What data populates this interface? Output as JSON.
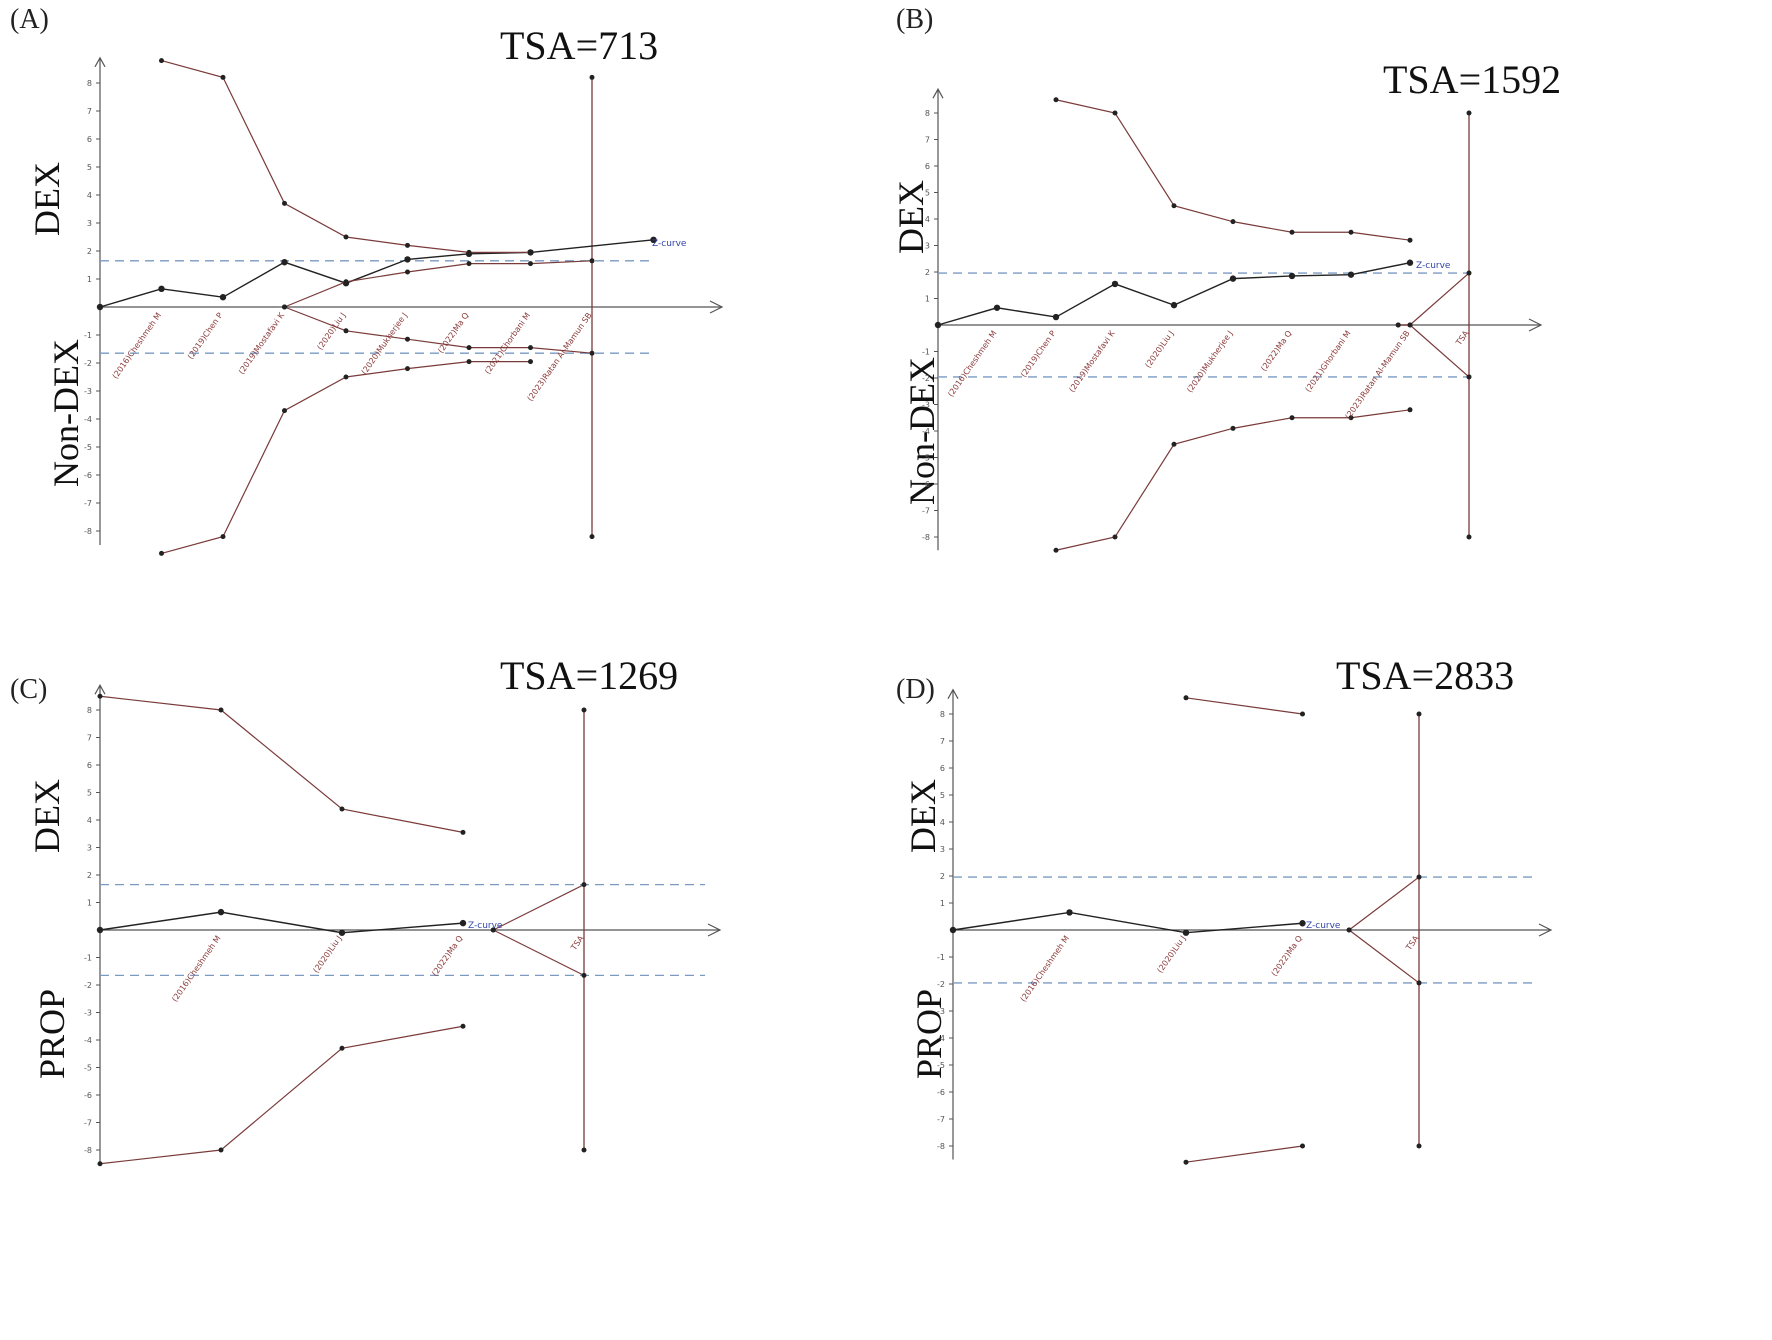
{
  "panels": [
    {
      "id": "A",
      "label": "(A)",
      "tsa": "TSA=713",
      "upper_label": "DEX",
      "lower_label": "Non-DEX",
      "chart_data": {
        "type": "line",
        "ylim": [
          -8,
          8
        ],
        "yticks": [
          -8,
          -7,
          -6,
          -5,
          -4,
          -3,
          -2,
          -1,
          1,
          2,
          3,
          4,
          5,
          6,
          7,
          8
        ],
        "x": [
          0,
          1,
          2,
          3,
          4,
          5,
          6,
          7,
          8,
          9
        ],
        "study_labels": [
          "(2016)Cheshmeh M",
          "(2019)Chen P",
          "(2019)Mostafavi K",
          "(2020)Liu J",
          "(2020)Mukherjee J",
          "(2022)Ma Q",
          "(2021)Ghorbani M",
          "(2023)Ratan Al-Mamun SB"
        ],
        "zcurve_label": "Z-curve",
        "tsa_x": 8,
        "series": [
          {
            "name": "Z-curve",
            "x": [
              0,
              1,
              2,
              3,
              4,
              5,
              6,
              7,
              9
            ],
            "values": [
              0.0,
              0.65,
              0.35,
              1.6,
              0.85,
              1.7,
              1.9,
              1.95,
              2.4
            ]
          },
          {
            "x": [
              3,
              4,
              5,
              6,
              7,
              8
            ],
            "values": [
              0.0,
              0.9,
              1.25,
              1.55,
              1.55,
              1.65
            ]
          },
          {
            "x": [
              3,
              4,
              5,
              6,
              7,
              8
            ],
            "values": [
              0.0,
              -0.85,
              -1.15,
              -1.45,
              -1.45,
              -1.65
            ]
          },
          {
            "x": [
              1,
              2,
              3,
              4,
              5,
              6,
              7
            ],
            "values": [
              8.8,
              8.2,
              3.7,
              2.5,
              2.2,
              1.95,
              1.95
            ]
          },
          {
            "x": [
              1,
              2,
              3,
              4,
              5,
              6,
              7
            ],
            "values": [
              -8.8,
              -8.2,
              -3.7,
              -2.5,
              -2.2,
              -1.95,
              -1.95
            ]
          }
        ],
        "significance_levels": [
          1.65,
          -1.65
        ],
        "tsa_line": [
          -8.2,
          8.2
        ],
        "colors": {
          "axis": "#555555",
          "zcurve": "#222222",
          "boundary": "#7a3a3a",
          "threshold": "#7a9ac0",
          "study_label": "#8b3a3a",
          "zlabel": "#3344aa"
        }
      }
    },
    {
      "id": "B",
      "label": "(B)",
      "tsa": "TSA=1592",
      "upper_label": "DEX",
      "lower_label": "Non-DEX",
      "chart_data": {
        "type": "line",
        "ylim": [
          -8,
          8
        ],
        "yticks": [
          -8,
          -7,
          -6,
          -5,
          -4,
          -3,
          -2,
          -1,
          1,
          2,
          3,
          4,
          5,
          6,
          7,
          8
        ],
        "x": [
          0,
          1,
          2,
          3,
          4,
          5,
          6,
          7,
          8,
          9
        ],
        "study_labels": [
          "(2016)Cheshmeh M",
          "(2019)Chen P",
          "(2019)Mostafavi K",
          "(2020)Liu J",
          "(2020)Mukherjee J",
          "(2022)Ma Q",
          "(2021)Ghorbani M",
          "(2023)Ratan Al-Mamun SB",
          "TSA"
        ],
        "zcurve_label": "Z-curve",
        "tsa_x": 9,
        "series": [
          {
            "name": "Z-curve",
            "x": [
              0,
              1,
              2,
              3,
              4,
              5,
              6,
              7,
              8
            ],
            "values": [
              0.0,
              0.65,
              0.3,
              1.55,
              0.75,
              1.75,
              1.85,
              1.9,
              2.35
            ]
          },
          {
            "x": [
              7.8,
              8,
              9
            ],
            "values": [
              0.0,
              0.0,
              1.96
            ]
          },
          {
            "x": [
              7.8,
              8,
              9
            ],
            "values": [
              0.0,
              0.0,
              -1.96
            ]
          },
          {
            "x": [
              2,
              3,
              4,
              5,
              6,
              7,
              8
            ],
            "values": [
              8.5,
              8.0,
              4.5,
              3.9,
              3.5,
              3.5,
              3.2
            ]
          },
          {
            "x": [
              2,
              3,
              4,
              5,
              6,
              7,
              8
            ],
            "values": [
              -8.5,
              -8.0,
              -4.5,
              -3.9,
              -3.5,
              -3.5,
              -3.2
            ]
          }
        ],
        "significance_levels": [
          1.96,
          -1.96
        ],
        "tsa_line": [
          -8.0,
          8.0
        ],
        "colors": {
          "axis": "#555555",
          "zcurve": "#222222",
          "boundary": "#7a3a3a",
          "threshold": "#7a9ac0",
          "study_label": "#8b3a3a",
          "zlabel": "#3344aa"
        }
      }
    },
    {
      "id": "C",
      "label": "(C)",
      "tsa": "TSA=1269",
      "upper_label": "DEX",
      "lower_label": "PROP",
      "chart_data": {
        "type": "line",
        "ylim": [
          -8,
          8
        ],
        "yticks": [
          -8,
          -7,
          -6,
          -5,
          -4,
          -3,
          -2,
          -1,
          1,
          2,
          3,
          4,
          5,
          6,
          7,
          8
        ],
        "x": [
          0,
          1,
          2,
          3,
          4,
          5
        ],
        "study_labels": [
          "(2016)Cheshmeh M",
          "(2020)Liu J",
          "(2022)Ma Q",
          "TSA"
        ],
        "zcurve_label": "Z-curve",
        "tsa_x": 4,
        "series": [
          {
            "name": "Z-curve",
            "x": [
              0,
              1,
              2,
              3
            ],
            "values": [
              0.0,
              0.65,
              -0.1,
              0.25
            ]
          },
          {
            "x": [
              3.25,
              4
            ],
            "values": [
              0.0,
              1.65
            ]
          },
          {
            "x": [
              3.25,
              4
            ],
            "values": [
              0.0,
              -1.65
            ]
          },
          {
            "x": [
              0,
              1,
              2,
              3
            ],
            "values": [
              8.5,
              8.0,
              4.4,
              3.55
            ]
          },
          {
            "x": [
              0,
              1,
              2,
              3
            ],
            "values": [
              -8.5,
              -8.0,
              -4.3,
              -3.5
            ]
          }
        ],
        "significance_levels": [
          1.65,
          -1.65
        ],
        "tsa_line": [
          -8.0,
          8.0
        ],
        "colors": {
          "axis": "#555555",
          "zcurve": "#222222",
          "boundary": "#7a3a3a",
          "threshold": "#7a9ac0",
          "study_label": "#8b3a3a",
          "zlabel": "#3344aa"
        }
      }
    },
    {
      "id": "D",
      "label": "(D)",
      "tsa": "TSA=2833",
      "upper_label": "DEX",
      "lower_label": "PROP",
      "chart_data": {
        "type": "line",
        "ylim": [
          -8,
          8
        ],
        "yticks": [
          -8,
          -7,
          -6,
          -5,
          -4,
          -3,
          -2,
          -1,
          1,
          2,
          3,
          4,
          5,
          6,
          7,
          8
        ],
        "x": [
          0,
          1,
          2,
          3,
          4,
          5
        ],
        "study_labels": [
          "(2016)Cheshmeh M",
          "(2020)Liu J",
          "(2022)Ma Q",
          "TSA"
        ],
        "zcurve_label": "Z-curve",
        "tsa_x": 4,
        "series": [
          {
            "name": "Z-curve",
            "x": [
              0,
              1,
              2,
              3
            ],
            "values": [
              0.0,
              0.65,
              -0.1,
              0.25
            ]
          },
          {
            "x": [
              3.4,
              4
            ],
            "values": [
              0.0,
              1.96
            ]
          },
          {
            "x": [
              3.4,
              4
            ],
            "values": [
              0.0,
              -1.96
            ]
          },
          {
            "x": [
              2,
              3
            ],
            "values": [
              8.6,
              8.0
            ]
          },
          {
            "x": [
              2,
              3
            ],
            "values": [
              -8.6,
              -8.0
            ]
          }
        ],
        "significance_levels": [
          1.96,
          -1.96
        ],
        "tsa_line": [
          -8.0,
          8.0
        ],
        "colors": {
          "axis": "#555555",
          "zcurve": "#222222",
          "boundary": "#7a3a3a",
          "threshold": "#7a9ac0",
          "study_label": "#8b3a3a",
          "zlabel": "#3344aa"
        }
      }
    }
  ]
}
